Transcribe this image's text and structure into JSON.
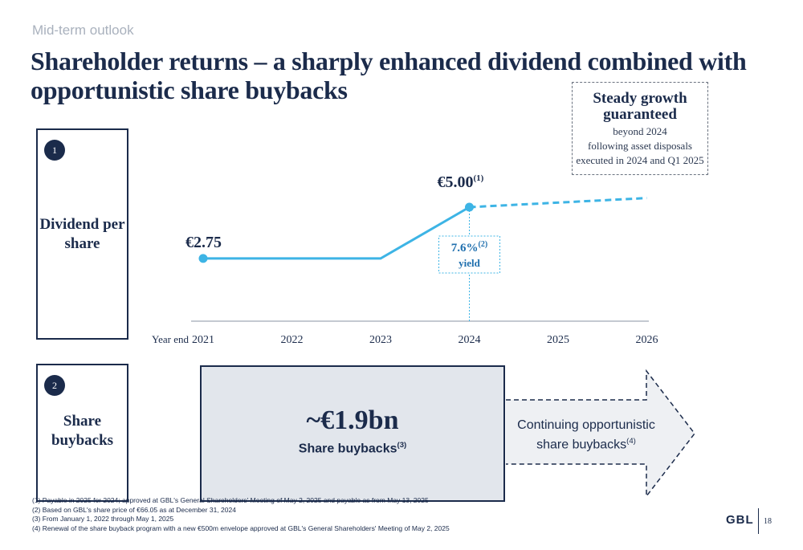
{
  "header": {
    "section_label": "Mid-term outlook",
    "title": "Shareholder returns – a sharply enhanced dividend combined with opportunistic share buybacks"
  },
  "dividend_section": {
    "number": "1",
    "label": "Dividend per share"
  },
  "buyback_section": {
    "number": "2",
    "label": "Share buybacks",
    "value": "~€1.9bn",
    "caption": "Share buybacks",
    "caption_note": "(3)",
    "continuation": "Continuing opportunistic share buybacks",
    "continuation_note": "(4)"
  },
  "steady_growth": {
    "title": "Steady growth guaranteed",
    "text_lines": [
      "beyond 2024",
      "following asset disposals",
      "executed in 2024 and Q1 2025"
    ]
  },
  "chart_data": {
    "type": "line",
    "x_axis_label": "Year end",
    "categories": [
      "2021",
      "2022",
      "2023",
      "2024",
      "2025",
      "2026"
    ],
    "series": [
      {
        "values": [
          2.75,
          2.75,
          2.75,
          5.0,
          null,
          null
        ],
        "style": "solid",
        "color": "#3db4e5"
      },
      {
        "values": [
          null,
          null,
          null,
          5.0,
          null,
          5.4
        ],
        "style": "dashed",
        "color": "#3db4e5"
      }
    ],
    "data_labels": [
      {
        "category": "2021",
        "text": "€2.75"
      },
      {
        "category": "2024",
        "text": "€5.00",
        "note": "(1)"
      }
    ],
    "yield_annotation": {
      "value": "7.6%",
      "note": "(2)",
      "label": "yield",
      "category": "2024"
    },
    "ylim": [
      0,
      8
    ],
    "grid": false
  },
  "footnotes": [
    "(1) Payable in 2025 for 2024; approved at GBL's General Shareholders' Meeting of May 2, 2025 and payable as from May 13, 2025",
    "(2) Based on GBL's share price of €66.05 as at December 31, 2024",
    "(3) From January 1, 2022 through May 1, 2025",
    "(4) Renewal of the share buyback program with a new €500m envelope approved at GBL's General Shareholders' Meeting of May 2, 2025"
  ],
  "footer": {
    "logo": "GBL",
    "page_number": "18"
  },
  "colors": {
    "navy": "#1b2b4b",
    "accent_blue": "#3db4e5",
    "yield_blue": "#1f6fae",
    "buyback_fill": "#e2e6ec",
    "muted_gray": "#a9b1bd"
  }
}
